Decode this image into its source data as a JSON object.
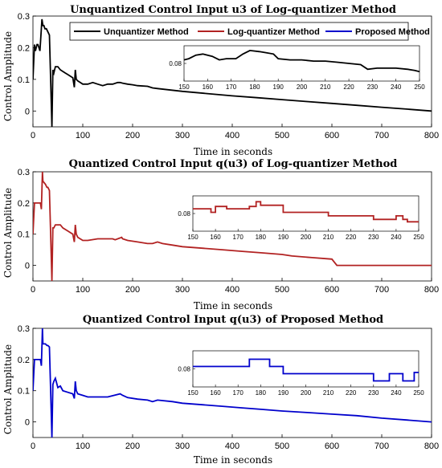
{
  "chart_data": [
    {
      "type": "line",
      "title": "Unquantized Control Input u3 of Log-quantizer Method",
      "xlabel": "Time in seconds",
      "ylabel": "Control Amplitude",
      "xlim": [
        0,
        800
      ],
      "ylim": [
        -0.05,
        0.3
      ],
      "xticks": [
        "0",
        "100",
        "200",
        "300",
        "400",
        "500",
        "600",
        "700",
        "800"
      ],
      "yticks": [
        "0",
        "0.1",
        "0.2",
        "0.3"
      ],
      "legend": {
        "placement": "top",
        "entries": [
          {
            "label": "Unquantizer Method",
            "color": "#000000"
          },
          {
            "label": "Log-quantizer Method",
            "color": "#b22222"
          },
          {
            "label": "Proposed Method",
            "color": "#0000cc"
          }
        ]
      },
      "series": [
        {
          "color": "#000000",
          "x": [
            0,
            3,
            5,
            8,
            10,
            14,
            18,
            20,
            22,
            24,
            27,
            30,
            33,
            35,
            38,
            40,
            42,
            45,
            50,
            55,
            60,
            65,
            70,
            75,
            80,
            83,
            85,
            87,
            90,
            95,
            100,
            110,
            120,
            130,
            140,
            150,
            160,
            170,
            175,
            180,
            190,
            200,
            210,
            230,
            240,
            250,
            300,
            350,
            400,
            450,
            500,
            550,
            600,
            650,
            700,
            750,
            800
          ],
          "y": [
            0.1,
            0.21,
            0.19,
            0.21,
            0.21,
            0.19,
            0.29,
            0.27,
            0.27,
            0.26,
            0.26,
            0.25,
            0.24,
            0.13,
            -0.05,
            0.13,
            0.12,
            0.14,
            0.14,
            0.13,
            0.125,
            0.12,
            0.115,
            0.11,
            0.105,
            0.075,
            0.13,
            0.1,
            0.095,
            0.09,
            0.085,
            0.085,
            0.09,
            0.085,
            0.08,
            0.085,
            0.085,
            0.09,
            0.09,
            0.088,
            0.085,
            0.083,
            0.08,
            0.078,
            0.073,
            0.071,
            0.062,
            0.055,
            0.048,
            0.042,
            0.036,
            0.03,
            0.024,
            0.018,
            0.012,
            0.006,
            0.0
          ]
        }
      ],
      "inset": {
        "xlim": [
          150,
          250
        ],
        "ylim": [
          0.065,
          0.095
        ],
        "xticks": [
          "150",
          "160",
          "170",
          "180",
          "190",
          "200",
          "210",
          "220",
          "230",
          "240",
          "250"
        ],
        "yticks": [
          "0.08"
        ],
        "color": "#000000",
        "x": [
          150,
          152,
          155,
          158,
          162,
          165,
          168,
          172,
          175,
          178,
          182,
          185,
          188,
          190,
          195,
          200,
          205,
          210,
          215,
          220,
          225,
          228,
          232,
          236,
          240,
          245,
          248,
          250
        ],
        "y": [
          0.083,
          0.084,
          0.087,
          0.088,
          0.086,
          0.083,
          0.084,
          0.084,
          0.088,
          0.091,
          0.09,
          0.089,
          0.088,
          0.084,
          0.083,
          0.083,
          0.082,
          0.082,
          0.081,
          0.08,
          0.079,
          0.075,
          0.076,
          0.076,
          0.076,
          0.075,
          0.074,
          0.073
        ]
      }
    },
    {
      "type": "line",
      "title": "Quantized Control Input q(u3) of Log-quantizer Method",
      "xlabel": "Time in seconds",
      "ylabel": "Control Amplitude",
      "xlim": [
        0,
        800
      ],
      "ylim": [
        -0.05,
        0.3
      ],
      "xticks": [
        "0",
        "100",
        "200",
        "300",
        "400",
        "500",
        "600",
        "700",
        "800"
      ],
      "yticks": [
        "0",
        "0.1",
        "0.2",
        "0.3"
      ],
      "series": [
        {
          "color": "#b22222",
          "x": [
            0,
            3,
            5,
            8,
            15,
            17,
            19,
            20,
            25,
            28,
            30,
            33,
            35,
            38,
            40,
            42,
            45,
            55,
            60,
            70,
            80,
            83,
            85,
            87,
            90,
            100,
            110,
            130,
            150,
            160,
            165,
            175,
            178,
            180,
            190,
            210,
            230,
            240,
            250,
            260,
            280,
            300,
            340,
            380,
            420,
            460,
            500,
            520,
            560,
            600,
            610,
            700,
            800
          ],
          "y": [
            0.1,
            0.2,
            0.2,
            0.2,
            0.2,
            0.18,
            0.3,
            0.27,
            0.26,
            0.25,
            0.25,
            0.24,
            0.13,
            -0.05,
            0.12,
            0.12,
            0.13,
            0.13,
            0.12,
            0.11,
            0.1,
            0.075,
            0.13,
            0.1,
            0.09,
            0.08,
            0.08,
            0.085,
            0.085,
            0.085,
            0.082,
            0.088,
            0.09,
            0.085,
            0.08,
            0.075,
            0.07,
            0.07,
            0.075,
            0.07,
            0.065,
            0.06,
            0.055,
            0.05,
            0.045,
            0.04,
            0.035,
            0.03,
            0.025,
            0.02,
            0.0,
            0.0,
            0.0
          ]
        }
      ],
      "inset": {
        "xlim": [
          150,
          250
        ],
        "ylim": [
          0.065,
          0.095
        ],
        "xticks": [
          "150",
          "160",
          "170",
          "180",
          "190",
          "200",
          "210",
          "220",
          "230",
          "240",
          "250"
        ],
        "yticks": [
          "0.08"
        ],
        "color": "#b22222",
        "x": [
          150,
          158,
          158,
          160,
          160,
          165,
          165,
          175,
          175,
          178,
          178,
          180,
          180,
          190,
          190,
          210,
          210,
          230,
          230,
          240,
          240,
          243,
          243,
          245,
          245,
          250
        ],
        "y": [
          0.084,
          0.084,
          0.081,
          0.081,
          0.086,
          0.086,
          0.084,
          0.084,
          0.086,
          0.086,
          0.09,
          0.09,
          0.087,
          0.087,
          0.081,
          0.081,
          0.078,
          0.078,
          0.075,
          0.075,
          0.078,
          0.078,
          0.075,
          0.075,
          0.073,
          0.073
        ]
      }
    },
    {
      "type": "line",
      "title": "Quantized Control Input q(u3) of Proposed Method",
      "xlabel": "Time in seconds",
      "ylabel": "Control Amplitude",
      "xlim": [
        0,
        800
      ],
      "ylim": [
        -0.05,
        0.3
      ],
      "xticks": [
        "0",
        "100",
        "200",
        "300",
        "400",
        "500",
        "600",
        "700",
        "800"
      ],
      "yticks": [
        "0",
        "0.1",
        "0.2",
        "0.3"
      ],
      "series": [
        {
          "color": "#0000cc",
          "x": [
            0,
            3,
            5,
            8,
            15,
            17,
            19,
            20,
            25,
            28,
            30,
            33,
            35,
            38,
            40,
            42,
            45,
            50,
            55,
            60,
            70,
            80,
            83,
            85,
            87,
            90,
            100,
            110,
            130,
            150,
            175,
            180,
            190,
            210,
            230,
            240,
            250,
            280,
            300,
            340,
            380,
            420,
            460,
            500,
            550,
            600,
            650,
            700,
            750,
            800
          ],
          "y": [
            0.1,
            0.2,
            0.2,
            0.2,
            0.2,
            0.18,
            0.3,
            0.25,
            0.25,
            0.245,
            0.245,
            0.24,
            0.13,
            -0.05,
            0.12,
            0.13,
            0.14,
            0.11,
            0.115,
            0.1,
            0.095,
            0.09,
            0.075,
            0.13,
            0.1,
            0.09,
            0.085,
            0.08,
            0.08,
            0.08,
            0.09,
            0.085,
            0.078,
            0.073,
            0.07,
            0.065,
            0.07,
            0.065,
            0.06,
            0.055,
            0.05,
            0.045,
            0.04,
            0.035,
            0.03,
            0.025,
            0.02,
            0.012,
            0.006,
            0.0
          ]
        }
      ],
      "inset": {
        "xlim": [
          150,
          250
        ],
        "ylim": [
          0.065,
          0.095
        ],
        "xticks": [
          "150",
          "160",
          "170",
          "180",
          "190",
          "200",
          "210",
          "220",
          "230",
          "240",
          "250"
        ],
        "yticks": [
          "0.08"
        ],
        "color": "#0000cc",
        "x": [
          150,
          175,
          175,
          184,
          184,
          190,
          190,
          230,
          230,
          237,
          237,
          243,
          243,
          248,
          248,
          250
        ],
        "y": [
          0.082,
          0.082,
          0.088,
          0.088,
          0.082,
          0.082,
          0.076,
          0.076,
          0.07,
          0.07,
          0.076,
          0.076,
          0.07,
          0.07,
          0.077,
          0.077
        ]
      }
    }
  ]
}
